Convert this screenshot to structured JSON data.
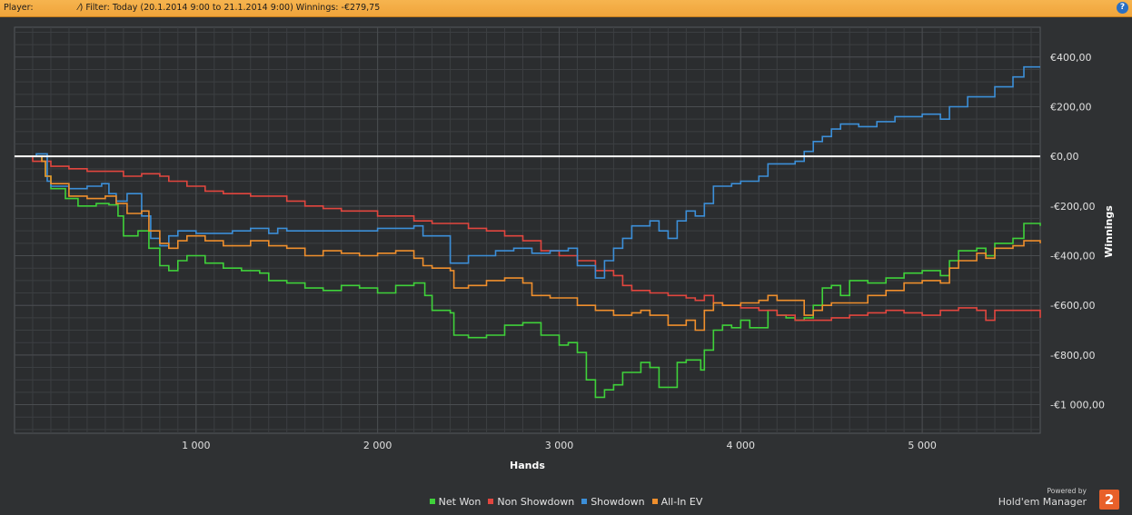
{
  "header": {
    "player_label": "Player:",
    "filter_text": "⁄) Filter: Today (20.1.2014 9:00 to 21.1.2014 9:00) Winnings: -€279,75",
    "help_icon": "question-icon"
  },
  "branding": {
    "powered_by": "Powered by",
    "product": "Hold'em Manager",
    "logo_text": "2",
    "logo_color": "#e8602a"
  },
  "colors": {
    "background": "#2f3133",
    "plot_bg": "#2b2d2f",
    "grid": "#4a4d50",
    "header_bar": "#f2a640",
    "zero_line": "#ffffff"
  },
  "chart_data": {
    "type": "line",
    "xlabel": "Hands",
    "ylabel": "Winnings",
    "xlim": [
      0,
      5650
    ],
    "ylim": [
      -1115,
      520
    ],
    "x_ticks": [
      1000,
      2000,
      3000,
      4000,
      5000
    ],
    "x_tick_labels": [
      "1 000",
      "2 000",
      "3 000",
      "4 000",
      "5 000"
    ],
    "y_ticks": [
      400,
      200,
      0,
      -200,
      -400,
      -600,
      -800,
      -1000
    ],
    "y_tick_labels": [
      "€400,00",
      "€200,00",
      "€0,00",
      "-€200,00",
      "-€400,00",
      "-€600,00",
      "-€800,00",
      "-€1 000,00"
    ],
    "grid": true,
    "legend_position": "bottom",
    "series": [
      {
        "name": "Net Won",
        "color": "#3fd13a",
        "points": [
          [
            0,
            0
          ],
          [
            150,
            -20
          ],
          [
            170,
            -80
          ],
          [
            200,
            -130
          ],
          [
            280,
            -170
          ],
          [
            350,
            -200
          ],
          [
            450,
            -190
          ],
          [
            520,
            -195
          ],
          [
            570,
            -240
          ],
          [
            600,
            -320
          ],
          [
            680,
            -300
          ],
          [
            740,
            -370
          ],
          [
            800,
            -440
          ],
          [
            850,
            -460
          ],
          [
            900,
            -420
          ],
          [
            950,
            -400
          ],
          [
            1050,
            -430
          ],
          [
            1150,
            -450
          ],
          [
            1250,
            -460
          ],
          [
            1350,
            -470
          ],
          [
            1400,
            -500
          ],
          [
            1500,
            -510
          ],
          [
            1600,
            -530
          ],
          [
            1700,
            -540
          ],
          [
            1800,
            -520
          ],
          [
            1900,
            -530
          ],
          [
            2000,
            -550
          ],
          [
            2100,
            -520
          ],
          [
            2200,
            -510
          ],
          [
            2260,
            -560
          ],
          [
            2300,
            -620
          ],
          [
            2400,
            -630
          ],
          [
            2420,
            -720
          ],
          [
            2500,
            -730
          ],
          [
            2600,
            -720
          ],
          [
            2700,
            -680
          ],
          [
            2800,
            -670
          ],
          [
            2900,
            -720
          ],
          [
            3000,
            -760
          ],
          [
            3050,
            -750
          ],
          [
            3100,
            -790
          ],
          [
            3150,
            -900
          ],
          [
            3200,
            -970
          ],
          [
            3250,
            -940
          ],
          [
            3300,
            -920
          ],
          [
            3350,
            -870
          ],
          [
            3400,
            -870
          ],
          [
            3450,
            -830
          ],
          [
            3500,
            -850
          ],
          [
            3550,
            -930
          ],
          [
            3600,
            -930
          ],
          [
            3650,
            -830
          ],
          [
            3700,
            -820
          ],
          [
            3780,
            -860
          ],
          [
            3800,
            -780
          ],
          [
            3850,
            -700
          ],
          [
            3900,
            -680
          ],
          [
            3950,
            -690
          ],
          [
            4000,
            -660
          ],
          [
            4050,
            -690
          ],
          [
            4100,
            -690
          ],
          [
            4150,
            -620
          ],
          [
            4200,
            -640
          ],
          [
            4250,
            -650
          ],
          [
            4300,
            -660
          ],
          [
            4350,
            -650
          ],
          [
            4400,
            -600
          ],
          [
            4450,
            -530
          ],
          [
            4500,
            -520
          ],
          [
            4550,
            -560
          ],
          [
            4600,
            -500
          ],
          [
            4700,
            -510
          ],
          [
            4800,
            -490
          ],
          [
            4900,
            -470
          ],
          [
            5000,
            -460
          ],
          [
            5100,
            -480
          ],
          [
            5150,
            -420
          ],
          [
            5200,
            -380
          ],
          [
            5300,
            -370
          ],
          [
            5350,
            -400
          ],
          [
            5400,
            -350
          ],
          [
            5500,
            -330
          ],
          [
            5560,
            -270
          ],
          [
            5650,
            -280
          ]
        ]
      },
      {
        "name": "Non Showdown",
        "color": "#e2463f",
        "points": [
          [
            0,
            0
          ],
          [
            100,
            -20
          ],
          [
            200,
            -40
          ],
          [
            300,
            -50
          ],
          [
            400,
            -60
          ],
          [
            500,
            -60
          ],
          [
            600,
            -80
          ],
          [
            700,
            -70
          ],
          [
            800,
            -80
          ],
          [
            850,
            -100
          ],
          [
            950,
            -120
          ],
          [
            1050,
            -140
          ],
          [
            1150,
            -150
          ],
          [
            1300,
            -160
          ],
          [
            1400,
            -160
          ],
          [
            1500,
            -180
          ],
          [
            1600,
            -200
          ],
          [
            1700,
            -210
          ],
          [
            1800,
            -220
          ],
          [
            1900,
            -220
          ],
          [
            2000,
            -240
          ],
          [
            2100,
            -240
          ],
          [
            2200,
            -260
          ],
          [
            2300,
            -270
          ],
          [
            2400,
            -270
          ],
          [
            2500,
            -290
          ],
          [
            2600,
            -300
          ],
          [
            2700,
            -320
          ],
          [
            2800,
            -340
          ],
          [
            2900,
            -380
          ],
          [
            3000,
            -400
          ],
          [
            3100,
            -420
          ],
          [
            3200,
            -460
          ],
          [
            3300,
            -480
          ],
          [
            3350,
            -520
          ],
          [
            3400,
            -540
          ],
          [
            3500,
            -550
          ],
          [
            3600,
            -560
          ],
          [
            3700,
            -570
          ],
          [
            3750,
            -580
          ],
          [
            3800,
            -560
          ],
          [
            3850,
            -590
          ],
          [
            3900,
            -600
          ],
          [
            4000,
            -610
          ],
          [
            4100,
            -620
          ],
          [
            4200,
            -640
          ],
          [
            4300,
            -660
          ],
          [
            4400,
            -660
          ],
          [
            4500,
            -650
          ],
          [
            4600,
            -640
          ],
          [
            4700,
            -630
          ],
          [
            4800,
            -620
          ],
          [
            4900,
            -630
          ],
          [
            5000,
            -640
          ],
          [
            5100,
            -620
          ],
          [
            5200,
            -610
          ],
          [
            5300,
            -620
          ],
          [
            5350,
            -660
          ],
          [
            5400,
            -620
          ],
          [
            5500,
            -620
          ],
          [
            5650,
            -650
          ]
        ]
      },
      {
        "name": "Showdown",
        "color": "#3c8fd8",
        "points": [
          [
            0,
            0
          ],
          [
            120,
            10
          ],
          [
            150,
            10
          ],
          [
            180,
            -100
          ],
          [
            200,
            -120
          ],
          [
            300,
            -130
          ],
          [
            400,
            -120
          ],
          [
            480,
            -110
          ],
          [
            520,
            -150
          ],
          [
            560,
            -180
          ],
          [
            620,
            -150
          ],
          [
            700,
            -240
          ],
          [
            750,
            -330
          ],
          [
            800,
            -360
          ],
          [
            850,
            -320
          ],
          [
            900,
            -300
          ],
          [
            1000,
            -310
          ],
          [
            1200,
            -300
          ],
          [
            1300,
            -290
          ],
          [
            1400,
            -310
          ],
          [
            1450,
            -290
          ],
          [
            1500,
            -300
          ],
          [
            1700,
            -300
          ],
          [
            1800,
            -300
          ],
          [
            2000,
            -290
          ],
          [
            2200,
            -280
          ],
          [
            2250,
            -320
          ],
          [
            2350,
            -320
          ],
          [
            2400,
            -430
          ],
          [
            2500,
            -400
          ],
          [
            2650,
            -380
          ],
          [
            2750,
            -370
          ],
          [
            2850,
            -390
          ],
          [
            2950,
            -380
          ],
          [
            3050,
            -370
          ],
          [
            3100,
            -440
          ],
          [
            3200,
            -490
          ],
          [
            3250,
            -420
          ],
          [
            3300,
            -370
          ],
          [
            3350,
            -330
          ],
          [
            3400,
            -280
          ],
          [
            3500,
            -260
          ],
          [
            3550,
            -300
          ],
          [
            3600,
            -330
          ],
          [
            3650,
            -260
          ],
          [
            3700,
            -220
          ],
          [
            3750,
            -240
          ],
          [
            3800,
            -190
          ],
          [
            3850,
            -120
          ],
          [
            3950,
            -110
          ],
          [
            4000,
            -100
          ],
          [
            4100,
            -80
          ],
          [
            4150,
            -30
          ],
          [
            4250,
            -30
          ],
          [
            4300,
            -20
          ],
          [
            4350,
            20
          ],
          [
            4400,
            60
          ],
          [
            4450,
            80
          ],
          [
            4500,
            110
          ],
          [
            4550,
            130
          ],
          [
            4650,
            120
          ],
          [
            4750,
            140
          ],
          [
            4850,
            160
          ],
          [
            5000,
            170
          ],
          [
            5100,
            150
          ],
          [
            5150,
            200
          ],
          [
            5250,
            240
          ],
          [
            5400,
            280
          ],
          [
            5500,
            320
          ],
          [
            5560,
            360
          ],
          [
            5650,
            360
          ]
        ]
      },
      {
        "name": "All-In EV",
        "color": "#ef8f2d",
        "points": [
          [
            0,
            0
          ],
          [
            150,
            -20
          ],
          [
            170,
            -80
          ],
          [
            200,
            -110
          ],
          [
            300,
            -160
          ],
          [
            400,
            -170
          ],
          [
            500,
            -160
          ],
          [
            560,
            -190
          ],
          [
            620,
            -230
          ],
          [
            700,
            -220
          ],
          [
            740,
            -300
          ],
          [
            800,
            -350
          ],
          [
            850,
            -370
          ],
          [
            900,
            -340
          ],
          [
            950,
            -320
          ],
          [
            1050,
            -340
          ],
          [
            1150,
            -360
          ],
          [
            1300,
            -340
          ],
          [
            1400,
            -360
          ],
          [
            1500,
            -370
          ],
          [
            1600,
            -400
          ],
          [
            1700,
            -380
          ],
          [
            1800,
            -390
          ],
          [
            1900,
            -400
          ],
          [
            2000,
            -390
          ],
          [
            2100,
            -380
          ],
          [
            2200,
            -410
          ],
          [
            2250,
            -440
          ],
          [
            2300,
            -450
          ],
          [
            2400,
            -460
          ],
          [
            2420,
            -530
          ],
          [
            2500,
            -520
          ],
          [
            2600,
            -500
          ],
          [
            2700,
            -490
          ],
          [
            2800,
            -510
          ],
          [
            2850,
            -560
          ],
          [
            2950,
            -570
          ],
          [
            3050,
            -570
          ],
          [
            3100,
            -600
          ],
          [
            3200,
            -620
          ],
          [
            3300,
            -640
          ],
          [
            3400,
            -630
          ],
          [
            3450,
            -620
          ],
          [
            3500,
            -640
          ],
          [
            3600,
            -680
          ],
          [
            3700,
            -660
          ],
          [
            3750,
            -700
          ],
          [
            3800,
            -620
          ],
          [
            3850,
            -590
          ],
          [
            3900,
            -600
          ],
          [
            4000,
            -590
          ],
          [
            4100,
            -580
          ],
          [
            4150,
            -560
          ],
          [
            4200,
            -580
          ],
          [
            4300,
            -580
          ],
          [
            4350,
            -640
          ],
          [
            4400,
            -620
          ],
          [
            4450,
            -600
          ],
          [
            4500,
            -590
          ],
          [
            4600,
            -590
          ],
          [
            4700,
            -560
          ],
          [
            4800,
            -540
          ],
          [
            4900,
            -510
          ],
          [
            5000,
            -500
          ],
          [
            5100,
            -510
          ],
          [
            5150,
            -450
          ],
          [
            5200,
            -420
          ],
          [
            5300,
            -390
          ],
          [
            5350,
            -410
          ],
          [
            5400,
            -370
          ],
          [
            5500,
            -360
          ],
          [
            5560,
            -340
          ],
          [
            5650,
            -350
          ]
        ]
      }
    ]
  }
}
